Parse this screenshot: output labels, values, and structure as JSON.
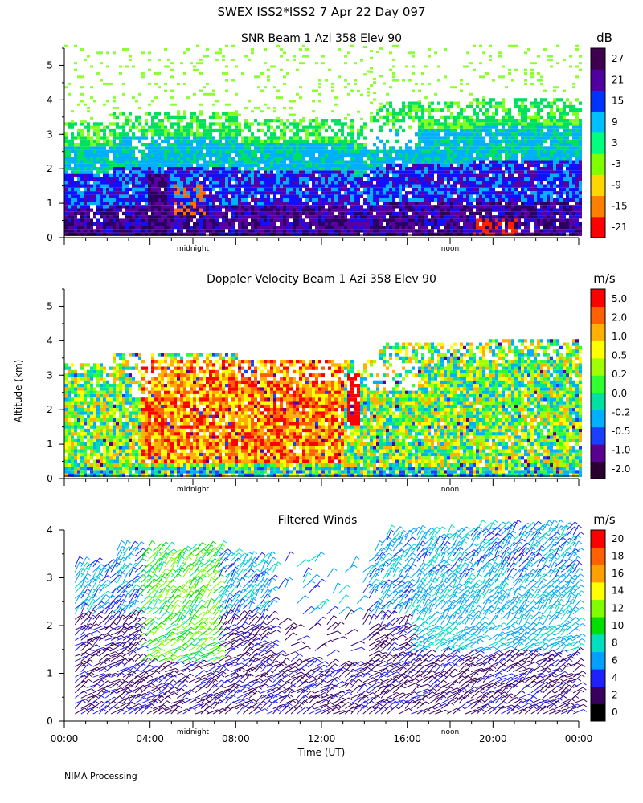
{
  "figure": {
    "title": "SWEX ISS2*ISS2    7 Apr 22 Day 097",
    "footer": "NIMA Processing",
    "ylabel": "Altitude (km)"
  },
  "chart_data": [
    {
      "type": "heatmap",
      "id": "snr",
      "title": "SNR Beam 1 Azi 358 Elev 90",
      "units": "dB",
      "ylim": [
        0,
        5.5
      ],
      "yticks": [
        0,
        1,
        2,
        3,
        4,
        5
      ],
      "xlim": [
        0,
        24
      ],
      "time_markers": [
        {
          "label": "midnight",
          "x": 6
        },
        {
          "label": "noon",
          "x": 18
        }
      ],
      "colorbar": {
        "ticks": [
          "27",
          "21",
          "15",
          "9",
          "3",
          "-3",
          "-9",
          "-15",
          "-21"
        ],
        "colors": [
          "#ff0000",
          "#ff7f00",
          "#ffd700",
          "#7fff00",
          "#00ff7f",
          "#00bfff",
          "#0033ff",
          "#5000a0",
          "#400050"
        ]
      }
    },
    {
      "type": "heatmap",
      "id": "doppler",
      "title": "Doppler Velocity Beam 1 Azi 358 Elev 90",
      "units": "m/s",
      "ylim": [
        0,
        5.5
      ],
      "yticks": [
        0,
        1,
        2,
        3,
        4,
        5
      ],
      "xlim": [
        0,
        24
      ],
      "time_markers": [
        {
          "label": "midnight",
          "x": 6
        },
        {
          "label": "noon",
          "x": 18
        }
      ],
      "colorbar": {
        "ticks": [
          "5.0",
          "2.0",
          "1.0",
          "0.5",
          "0.2",
          "0.0",
          "-0.2",
          "-0.5",
          "-1.0",
          "-2.0"
        ],
        "colors": [
          "#2a0030",
          "#5a0090",
          "#1a40ff",
          "#00b0ff",
          "#00e0a0",
          "#30ff30",
          "#a0ff00",
          "#ffff00",
          "#ffb000",
          "#ff6000",
          "#ff0000"
        ]
      }
    },
    {
      "type": "wind_barbs",
      "id": "winds",
      "title": "Filtered Winds",
      "units": "m/s",
      "ylim": [
        0,
        4
      ],
      "yticks": [
        0,
        1,
        2,
        3,
        4
      ],
      "xlim": [
        0,
        24
      ],
      "xticks": [
        "00:00",
        "04:00",
        "08:00",
        "12:00",
        "16:00",
        "20:00",
        "00:00"
      ],
      "xlabel": "Time (UT)",
      "time_markers": [
        {
          "label": "midnight",
          "x": 6
        },
        {
          "label": "noon",
          "x": 18
        }
      ],
      "colorbar": {
        "ticks": [
          "20",
          "18",
          "16",
          "14",
          "12",
          "10",
          "8",
          "6",
          "4",
          "2",
          "0"
        ],
        "colors": [
          "#000000",
          "#3a0060",
          "#2020ff",
          "#00a0ff",
          "#00e0c0",
          "#00e000",
          "#80ff00",
          "#ffff00",
          "#ffa000",
          "#ff6000",
          "#ff0000"
        ]
      }
    }
  ]
}
